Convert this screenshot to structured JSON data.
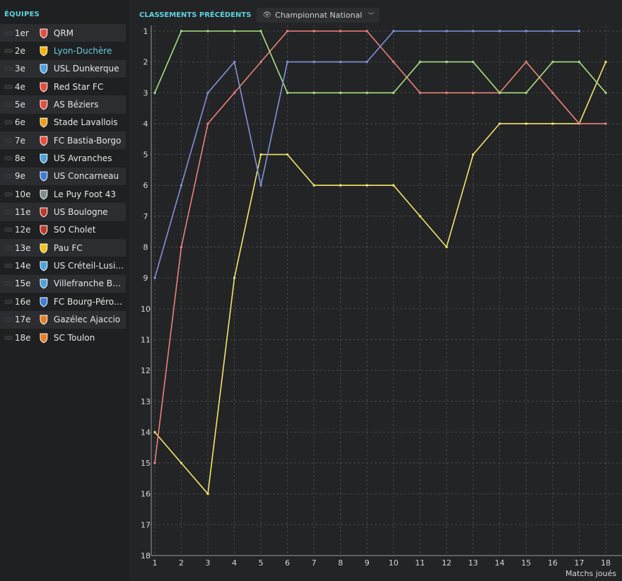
{
  "sidebar": {
    "title": "ÉQUIPES",
    "teams": [
      {
        "pos": "1er",
        "name": "QRM",
        "marker": "#7f8fd6",
        "crest": "#e84b3c",
        "highlight": false
      },
      {
        "pos": "2e",
        "name": "Lyon-Duchère",
        "marker": "#f2e36b",
        "crest": "#f4b400",
        "highlight": true
      },
      {
        "pos": "3e",
        "name": "USL Dunkerque",
        "marker": "#a6e07f",
        "crest": "#4aa3df",
        "highlight": false
      },
      {
        "pos": "4e",
        "name": "Red Star FC",
        "marker": "#e88079",
        "crest": "#e84b3c",
        "highlight": false
      },
      {
        "pos": "5e",
        "name": "AS Béziers",
        "marker": "",
        "crest": "#e84b3c",
        "highlight": false
      },
      {
        "pos": "6e",
        "name": "Stade Lavallois",
        "marker": "",
        "crest": "#f39c12",
        "highlight": false
      },
      {
        "pos": "7e",
        "name": "FC Bastia-Borgo",
        "marker": "",
        "crest": "#e84b3c",
        "highlight": false
      },
      {
        "pos": "8e",
        "name": "US Avranches",
        "marker": "",
        "crest": "#4aa3df",
        "highlight": false
      },
      {
        "pos": "9e",
        "name": "US Concarneau",
        "marker": "",
        "crest": "#3b7dd8",
        "highlight": false
      },
      {
        "pos": "10e",
        "name": "Le Puy Foot 43",
        "marker": "",
        "crest": "#7f8c8d",
        "highlight": false
      },
      {
        "pos": "11e",
        "name": "US Boulogne",
        "marker": "",
        "crest": "#c0392b",
        "highlight": false
      },
      {
        "pos": "12e",
        "name": "SO Cholet",
        "marker": "",
        "crest": "#c0392b",
        "highlight": false
      },
      {
        "pos": "13e",
        "name": "Pau FC",
        "marker": "",
        "crest": "#f1c40f",
        "highlight": false
      },
      {
        "pos": "14e",
        "name": "US Créteil-Lusita...",
        "marker": "",
        "crest": "#4aa3df",
        "highlight": false
      },
      {
        "pos": "15e",
        "name": "Villefranche Beau...",
        "marker": "",
        "crest": "#4aa3df",
        "highlight": false
      },
      {
        "pos": "16e",
        "name": "FC Bourg-Péronn...",
        "marker": "",
        "crest": "#3b7dd8",
        "highlight": false
      },
      {
        "pos": "17e",
        "name": "Gazélec Ajaccio",
        "marker": "",
        "crest": "#e67e22",
        "highlight": false
      },
      {
        "pos": "18e",
        "name": "SC Toulon",
        "marker": "",
        "crest": "#e67e22",
        "highlight": false
      }
    ]
  },
  "header": {
    "title": "CLASSEMENTS PRÉCÉDENTS",
    "dropdown_value": "Championnat National"
  },
  "chart_data": {
    "type": "line",
    "x": [
      1,
      2,
      3,
      4,
      5,
      6,
      7,
      8,
      9,
      10,
      11,
      12,
      13,
      14,
      15,
      16,
      17,
      18
    ],
    "xlabel": "Matchs joués",
    "ylabel": "",
    "xlim": [
      1,
      18
    ],
    "ylim": [
      1,
      18
    ],
    "y_inverted": true,
    "y_ticks": [
      1,
      2,
      3,
      4,
      5,
      6,
      7,
      8,
      9,
      10,
      11,
      12,
      13,
      14,
      15,
      16,
      17,
      18
    ],
    "grid": true,
    "series": [
      {
        "name": "Lyon-Duchère",
        "color": "#f5e46a",
        "values": [
          14,
          15,
          16,
          9,
          5,
          5,
          6,
          6,
          6,
          6,
          7,
          8,
          5,
          4,
          4,
          4,
          4,
          2
        ]
      },
      {
        "name": "Red Star FC",
        "color": "#ec8179",
        "values": [
          15,
          8,
          4,
          3,
          2,
          1,
          1,
          1,
          1,
          2,
          3,
          3,
          3,
          3,
          2,
          3,
          4,
          4
        ]
      },
      {
        "name": "USL Dunkerque",
        "color": "#a8df7f",
        "values": [
          3,
          1,
          1,
          1,
          1,
          3,
          3,
          3,
          3,
          3,
          2,
          2,
          2,
          3,
          3,
          2,
          2,
          3
        ]
      },
      {
        "name": "QRM",
        "color": "#8093d8",
        "values": [
          9,
          6,
          3,
          2,
          6,
          2,
          2,
          2,
          2,
          1,
          1,
          1,
          1,
          1,
          1,
          1,
          1,
          null
        ]
      }
    ]
  }
}
